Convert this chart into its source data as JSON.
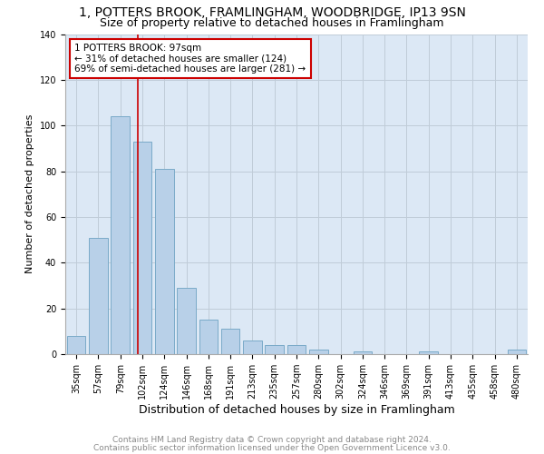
{
  "title": "1, POTTERS BROOK, FRAMLINGHAM, WOODBRIDGE, IP13 9SN",
  "subtitle": "Size of property relative to detached houses in Framlingham",
  "xlabel": "Distribution of detached houses by size in Framlingham",
  "ylabel": "Number of detached properties",
  "categories": [
    "35sqm",
    "57sqm",
    "79sqm",
    "102sqm",
    "124sqm",
    "146sqm",
    "168sqm",
    "191sqm",
    "213sqm",
    "235sqm",
    "257sqm",
    "280sqm",
    "302sqm",
    "324sqm",
    "346sqm",
    "369sqm",
    "391sqm",
    "413sqm",
    "435sqm",
    "458sqm",
    "480sqm"
  ],
  "values": [
    8,
    51,
    104,
    93,
    81,
    29,
    15,
    11,
    6,
    4,
    4,
    2,
    0,
    1,
    0,
    0,
    1,
    0,
    0,
    0,
    2
  ],
  "bar_color": "#b8d0e8",
  "bar_edge_color": "#7aaac8",
  "property_label": "1 POTTERS BROOK: 97sqm",
  "annotation_line1": "← 31% of detached houses are smaller (124)",
  "annotation_line2": "69% of semi-detached houses are larger (281) →",
  "vline_color": "#cc0000",
  "annotation_box_color": "#cc0000",
  "background_color": "#ffffff",
  "axes_bg_color": "#dce8f5",
  "grid_color": "#c0ccd8",
  "footnote1": "Contains HM Land Registry data © Crown copyright and database right 2024.",
  "footnote2": "Contains public sector information licensed under the Open Government Licence v3.0.",
  "title_fontsize": 10,
  "subtitle_fontsize": 9,
  "xlabel_fontsize": 9,
  "ylabel_fontsize": 8,
  "tick_fontsize": 7,
  "annotation_fontsize": 7.5,
  "footnote_fontsize": 6.5,
  "ylim": [
    0,
    140
  ]
}
